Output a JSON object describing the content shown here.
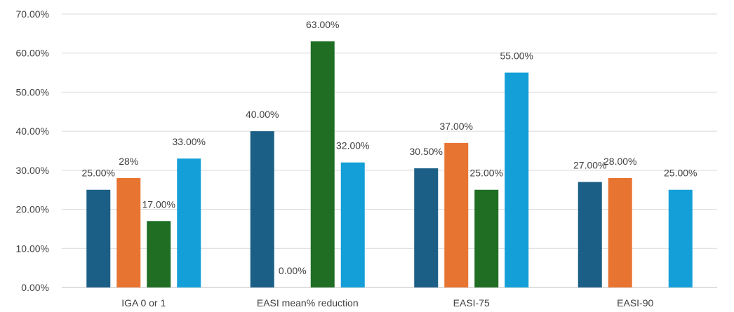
{
  "chart_data": {
    "type": "bar",
    "title": "",
    "xlabel": "",
    "ylabel": "",
    "categories": [
      "IGA 0 or 1",
      "EASI mean% reduction",
      "EASI-75",
      "EASI-90"
    ],
    "series": [
      {
        "color": "#1b5f86",
        "values": [
          25,
          40,
          30.5,
          27
        ],
        "labels": [
          "25.00%",
          "40.00%",
          "30.50%",
          "27.00%"
        ]
      },
      {
        "color": "#e87432",
        "values": [
          28,
          0,
          37,
          28
        ],
        "labels": [
          "28%",
          "0.00%",
          "37.00%",
          "28.00%"
        ]
      },
      {
        "color": "#1f6e24",
        "values": [
          17,
          63,
          25,
          null
        ],
        "labels": [
          "17.00%",
          "63.00%",
          "25.00%",
          null
        ]
      },
      {
        "color": "#149fd8",
        "values": [
          33,
          32,
          55,
          25
        ],
        "labels": [
          "33.00%",
          "32.00%",
          "55.00%",
          "25.00%"
        ]
      }
    ],
    "ylim": [
      0,
      70
    ],
    "yticks": [
      0,
      10,
      20,
      30,
      40,
      50,
      60,
      70
    ],
    "ytick_labels": [
      "0.00%",
      "10.00%",
      "20.00%",
      "30.00%",
      "40.00%",
      "50.00%",
      "60.00%",
      "70.00%"
    ],
    "grid": true,
    "legend": "none"
  }
}
